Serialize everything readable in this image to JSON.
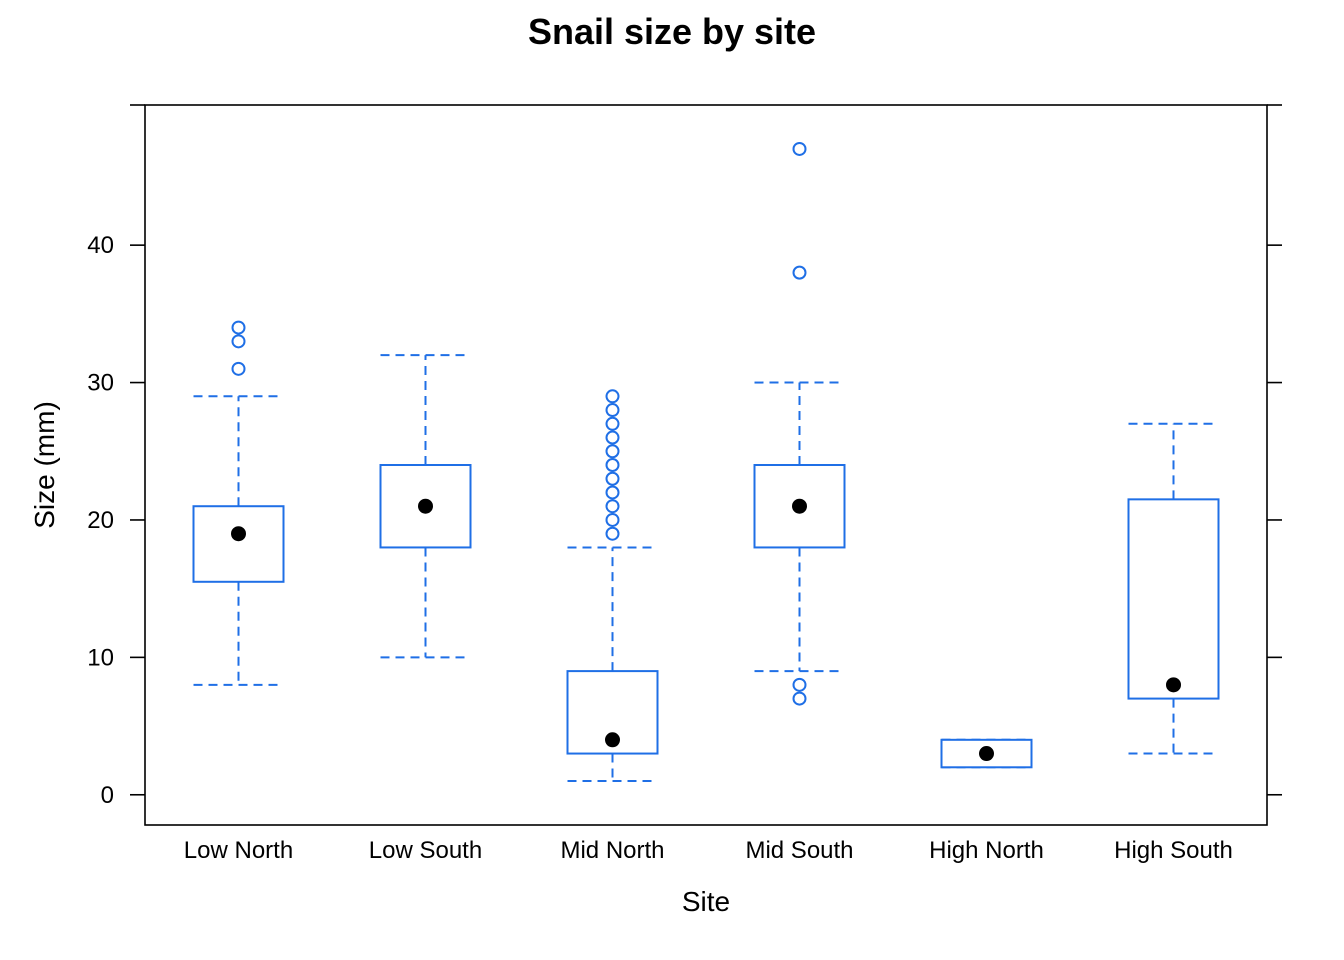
{
  "chart_data": {
    "type": "boxplot",
    "title": "Snail size by site",
    "xlabel": "Site",
    "ylabel": "Size (mm)",
    "ylim": [
      -2.2,
      50.2
    ],
    "yticks": [
      0,
      10,
      20,
      30,
      40
    ],
    "grid": false,
    "colors": {
      "box": "#1f6fe6",
      "median": "#000000",
      "axis": "#000000"
    },
    "categories": [
      "Low North",
      "Low South",
      "Mid North",
      "Mid South",
      "High North",
      "High South"
    ],
    "boxes": [
      {
        "category": "Low North",
        "whisker_low": 8,
        "q1": 15.5,
        "median": 19,
        "q3": 21,
        "whisker_high": 29,
        "outliers": [
          31,
          33,
          34
        ]
      },
      {
        "category": "Low South",
        "whisker_low": 10,
        "q1": 18,
        "median": 21,
        "q3": 24,
        "whisker_high": 32,
        "outliers": []
      },
      {
        "category": "Mid North",
        "whisker_low": 1,
        "q1": 3,
        "median": 4,
        "q3": 9,
        "whisker_high": 18,
        "outliers": [
          19,
          20,
          21,
          22,
          23,
          24,
          25,
          26,
          27,
          28,
          29
        ]
      },
      {
        "category": "Mid South",
        "whisker_low": 9,
        "q1": 18,
        "median": 21,
        "q3": 24,
        "whisker_high": 30,
        "outliers": [
          7,
          8,
          38,
          47
        ]
      },
      {
        "category": "High North",
        "whisker_low": 2,
        "q1": 2,
        "median": 3,
        "q3": 4,
        "whisker_high": 4,
        "outliers": []
      },
      {
        "category": "High South",
        "whisker_low": 3,
        "q1": 7,
        "median": 8,
        "q3": 21.5,
        "whisker_high": 27,
        "outliers": []
      }
    ]
  }
}
